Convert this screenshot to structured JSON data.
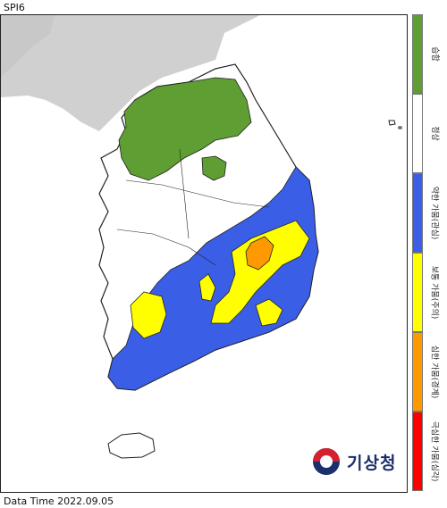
{
  "title": "SPI6",
  "footer": "Data Time 2022.09.05",
  "logo": {
    "text": "기상청",
    "icon": "kma-logo-icon"
  },
  "legend": [
    {
      "label": "습함",
      "color": "#5f9e32"
    },
    {
      "label": "정상",
      "color": "#ffffff"
    },
    {
      "label": "약한 가뭄(관심)",
      "color": "#3a5fe6"
    },
    {
      "label": "보통 가뭄(주의)",
      "color": "#ffff00"
    },
    {
      "label": "심한 가뭄(경계)",
      "color": "#ff9900"
    },
    {
      "label": "극심한 가뭄(심각)",
      "color": "#ff0000"
    }
  ],
  "map": {
    "region": "South Korea",
    "land_color": "#d0d0d0"
  }
}
